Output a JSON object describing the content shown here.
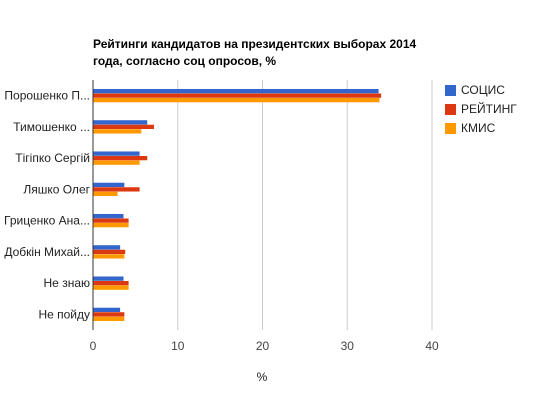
{
  "chart_data": {
    "type": "bar",
    "orientation": "horizontal",
    "title_lines": [
      "Рейтинги кандидатов на президентских выборах 2014",
      "года, согласно соц опросов, %"
    ],
    "xlabel": "%",
    "ylabel": "",
    "categories": [
      "Порошенко П...",
      "Тимошенко ...",
      "Тігіпко Сергій",
      "Ляшко Олег",
      "Гриценко Ана...",
      "Добкін Михай...",
      "Не знаю",
      "Не пойду"
    ],
    "series": [
      {
        "name": "СОЦИС",
        "color": "#3366cc",
        "values": [
          33.7,
          6.4,
          5.5,
          3.7,
          3.6,
          3.2,
          3.6,
          3.2
        ]
      },
      {
        "name": "РЕЙТИНГ",
        "color": "#dc3912",
        "values": [
          34.0,
          7.2,
          6.4,
          5.5,
          4.2,
          3.8,
          4.2,
          3.7
        ]
      },
      {
        "name": "КМИС",
        "color": "#ff9900",
        "values": [
          33.8,
          5.7,
          5.5,
          2.9,
          4.2,
          3.7,
          4.2,
          3.7
        ]
      }
    ],
    "xlim": [
      0,
      40
    ],
    "xticks": [
      0,
      10,
      20,
      30,
      40
    ],
    "grid": true,
    "legend_position": "right"
  }
}
